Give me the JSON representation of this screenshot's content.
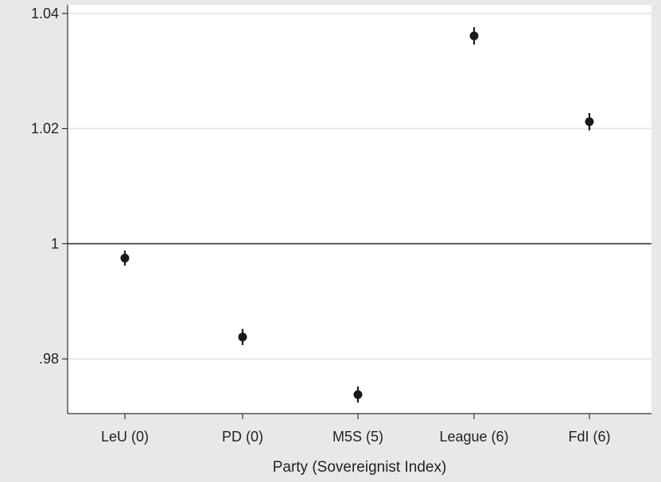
{
  "chart_data": {
    "type": "scatter",
    "xlabel": "Party (Sovereignist Index)",
    "ylabel": "",
    "categories": [
      "LeU (0)",
      "PD (0)",
      "M5S (5)",
      "League (6)",
      "FdI (6)"
    ],
    "values": [
      0.9975,
      0.9838,
      0.9738,
      1.0361,
      1.0212
    ],
    "ci_lower": [
      0.9962,
      0.9824,
      0.9724,
      1.0346,
      1.0197
    ],
    "ci_upper": [
      0.9988,
      0.9852,
      0.9752,
      1.0376,
      1.0227
    ],
    "ylim": [
      0.9705,
      1.0415
    ],
    "yticks": [
      0.98,
      1.0,
      1.02,
      1.04
    ],
    "ytick_labels": [
      ".98",
      "1",
      "1.02",
      "1.04"
    ],
    "reference_line": 1,
    "grid": true,
    "colors": {
      "background": "#e8e8e8",
      "plot_area": "#ffffff",
      "marker": "#1a1a1a",
      "gridline": "#e6e6e6",
      "axis": "#333333"
    }
  }
}
